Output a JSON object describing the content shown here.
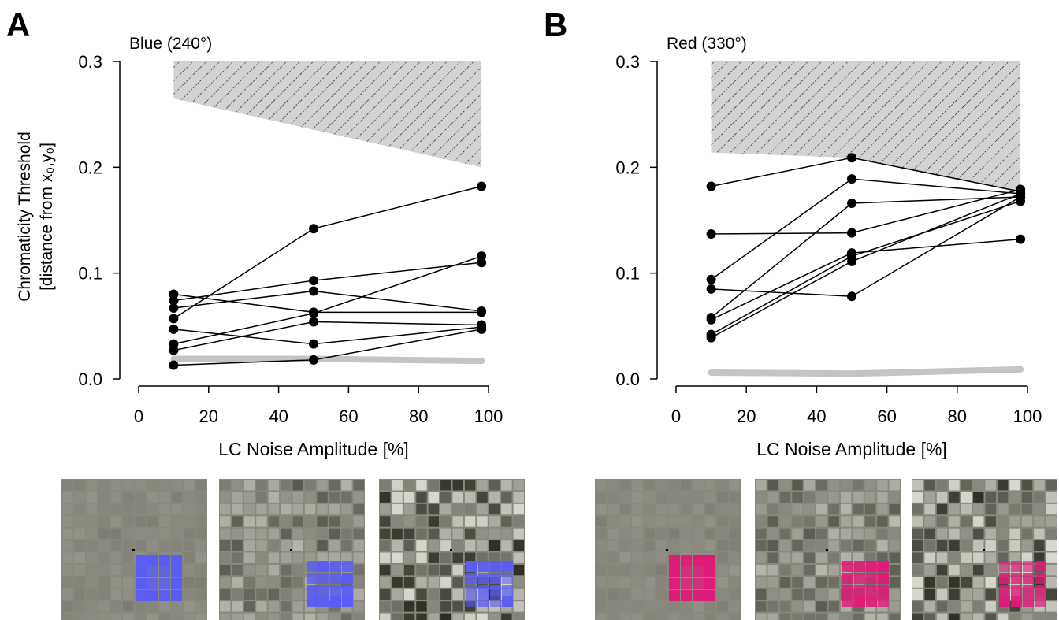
{
  "chart_data": [
    {
      "type": "line",
      "panel_label": "A",
      "title": "Blue (240°)",
      "y_label": [
        "Chromaticity Threshold",
        "[distance from x₀,y₀]"
      ],
      "x_label": "LC Noise Amplitude [%]",
      "x": [
        10,
        50,
        98
      ],
      "xlim": [
        0,
        100
      ],
      "xticks": [
        0,
        20,
        40,
        60,
        80,
        100
      ],
      "ylim": [
        0,
        0.3
      ],
      "yticks": [
        {
          "value": 0,
          "label": "0.0"
        },
        0.1,
        0.2,
        0.3
      ],
      "series": [
        {
          "color": "#000000",
          "values": [
            0.057,
            0.142,
            0.182
          ]
        },
        {
          "color": "#000000",
          "values": [
            0.074,
            0.093,
            0.11
          ]
        },
        {
          "color": "#000000",
          "values": [
            0.033,
            0.062,
            0.116
          ]
        },
        {
          "color": "#000000",
          "values": [
            0.067,
            0.083,
            0.064
          ]
        },
        {
          "color": "#000000",
          "values": [
            0.08,
            0.063,
            0.063
          ]
        },
        {
          "color": "#000000",
          "values": [
            0.047,
            0.033,
            0.049
          ]
        },
        {
          "color": "#000000",
          "values": [
            0.027,
            0.054,
            0.051
          ]
        },
        {
          "color": "#000000",
          "values": [
            0.013,
            0.018,
            0.047
          ]
        }
      ],
      "baseline": {
        "color": "#c4c4c4",
        "values": [
          0.019,
          0.019,
          0.017
        ]
      },
      "shaded_region": {
        "x": [
          10,
          98
        ],
        "lower": [
          0.265,
          0.2
        ]
      },
      "stimulus_color": "#5b5cf5"
    },
    {
      "type": "line",
      "panel_label": "B",
      "title": "Red (330°)",
      "x_label": "LC Noise Amplitude [%]",
      "x": [
        10,
        50,
        98
      ],
      "xlim": [
        0,
        100
      ],
      "xticks": [
        0,
        20,
        40,
        60,
        80,
        100
      ],
      "ylim": [
        0,
        0.3
      ],
      "yticks": [
        {
          "value": 0,
          "label": "0.0"
        },
        0.1,
        0.2,
        0.3
      ],
      "series": [
        {
          "color": "#000000",
          "values": [
            0.182,
            0.209,
            0.177
          ]
        },
        {
          "color": "#000000",
          "values": [
            0.137,
            0.138,
            0.179
          ]
        },
        {
          "color": "#000000",
          "values": [
            0.094,
            0.189,
            0.175
          ]
        },
        {
          "color": "#000000",
          "values": [
            0.085,
            0.078,
            0.172
          ]
        },
        {
          "color": "#000000",
          "values": [
            0.058,
            0.166,
            0.172
          ]
        },
        {
          "color": "#000000",
          "values": [
            0.056,
            0.119,
            0.132
          ]
        },
        {
          "color": "#000000",
          "values": [
            0.042,
            0.116,
            0.168
          ]
        },
        {
          "color": "#000000",
          "values": [
            0.039,
            0.111,
            0.175
          ]
        }
      ],
      "baseline": {
        "color": "#c4c4c4",
        "values": [
          0.006,
          0.005,
          0.009
        ]
      },
      "shaded_region": {
        "x": [
          10,
          50,
          98
        ],
        "lower": [
          0.214,
          0.209,
          0.177
        ]
      },
      "stimulus_color": "#e01a78"
    }
  ]
}
